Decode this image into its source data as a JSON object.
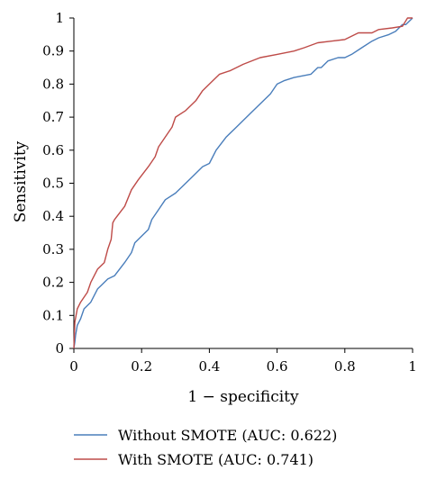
{
  "chart_data": {
    "type": "line",
    "xlabel": "1 − specificity",
    "ylabel": "Sensitivity",
    "xlim": [
      0,
      1
    ],
    "ylim": [
      0,
      1
    ],
    "x_ticks": [
      "0",
      "0.2",
      "0.4",
      "0.6",
      "0.8",
      "1"
    ],
    "y_ticks": [
      "0",
      "0.1",
      "0.2",
      "0.3",
      "0.4",
      "0.5",
      "0.6",
      "0.7",
      "0.8",
      "0.9",
      "1"
    ],
    "grid": false,
    "legend_position": "bottom",
    "series": [
      {
        "name": "Without SMOTE (AUC: 0.622)",
        "color": "#4a7ebb",
        "x": [
          0,
          0.003,
          0.005,
          0.01,
          0.02,
          0.03,
          0.05,
          0.07,
          0.08,
          0.1,
          0.12,
          0.15,
          0.17,
          0.18,
          0.2,
          0.22,
          0.23,
          0.25,
          0.27,
          0.3,
          0.32,
          0.35,
          0.38,
          0.4,
          0.42,
          0.45,
          0.48,
          0.5,
          0.52,
          0.55,
          0.58,
          0.6,
          0.62,
          0.65,
          0.7,
          0.72,
          0.73,
          0.75,
          0.78,
          0.8,
          0.82,
          0.85,
          0.88,
          0.9,
          0.93,
          0.95,
          0.97,
          0.98,
          1
        ],
        "y": [
          0,
          0.02,
          0.04,
          0.07,
          0.09,
          0.12,
          0.14,
          0.18,
          0.19,
          0.21,
          0.22,
          0.26,
          0.29,
          0.32,
          0.34,
          0.36,
          0.39,
          0.42,
          0.45,
          0.47,
          0.49,
          0.52,
          0.55,
          0.56,
          0.6,
          0.64,
          0.67,
          0.69,
          0.71,
          0.74,
          0.77,
          0.8,
          0.81,
          0.82,
          0.83,
          0.85,
          0.85,
          0.87,
          0.88,
          0.88,
          0.89,
          0.91,
          0.93,
          0.94,
          0.95,
          0.96,
          0.98,
          0.98,
          1
        ]
      },
      {
        "name": "With SMOTE (AUC: 0.741)",
        "color": "#be4b48",
        "x": [
          0,
          0.003,
          0.01,
          0.02,
          0.04,
          0.05,
          0.07,
          0.09,
          0.1,
          0.11,
          0.115,
          0.12,
          0.15,
          0.17,
          0.19,
          0.22,
          0.24,
          0.25,
          0.27,
          0.29,
          0.3,
          0.33,
          0.36,
          0.38,
          0.4,
          0.43,
          0.46,
          0.5,
          0.55,
          0.6,
          0.65,
          0.68,
          0.72,
          0.76,
          0.8,
          0.84,
          0.88,
          0.9,
          0.94,
          0.97,
          0.985,
          1
        ],
        "y": [
          0,
          0.08,
          0.12,
          0.14,
          0.17,
          0.2,
          0.24,
          0.26,
          0.3,
          0.33,
          0.38,
          0.39,
          0.43,
          0.48,
          0.51,
          0.55,
          0.58,
          0.61,
          0.64,
          0.67,
          0.7,
          0.72,
          0.75,
          0.78,
          0.8,
          0.83,
          0.84,
          0.86,
          0.88,
          0.89,
          0.9,
          0.91,
          0.925,
          0.93,
          0.935,
          0.955,
          0.955,
          0.965,
          0.97,
          0.975,
          1,
          1
        ]
      }
    ]
  }
}
